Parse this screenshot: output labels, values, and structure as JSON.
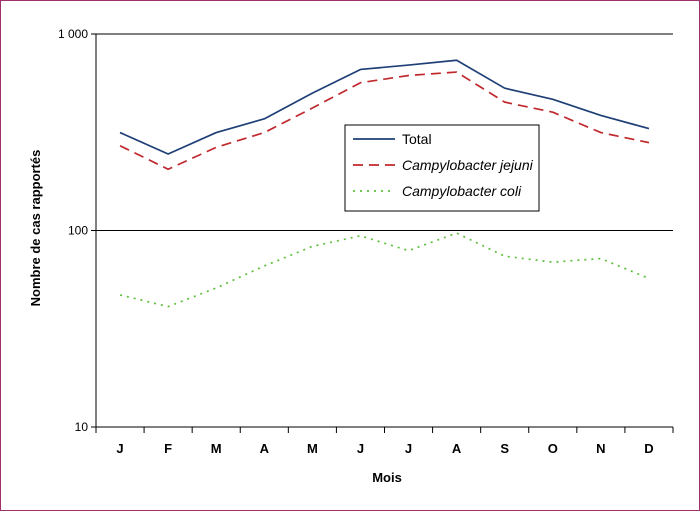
{
  "chart_data": {
    "type": "line",
    "title": "",
    "xlabel": "Mois",
    "ylabel": "Nombre de cas rapportés",
    "yscale": "log",
    "ylim": [
      10,
      1000
    ],
    "y_ticks": [
      {
        "value": 10,
        "label": "10"
      },
      {
        "value": 100,
        "label": "100"
      },
      {
        "value": 1000,
        "label": "1 000"
      }
    ],
    "grid": "horizontal major lines at 100 and 1 000",
    "legend_position": "center-right",
    "categories": [
      "J",
      "F",
      "M",
      "A",
      "M",
      "J",
      "J",
      "A",
      "S",
      "O",
      "N",
      "D"
    ],
    "series": [
      {
        "name": "Total",
        "italic": false,
        "color": "#1f3f77",
        "style": "solid",
        "values": [
          315,
          245,
          315,
          370,
          500,
          660,
          695,
          735,
          530,
          465,
          385,
          330
        ]
      },
      {
        "name": "Campylobacter jejuni",
        "italic": true,
        "color": "#c0282d",
        "style": "dashed",
        "values": [
          270,
          205,
          265,
          315,
          420,
          565,
          615,
          640,
          450,
          400,
          315,
          280
        ]
      },
      {
        "name": "Campylobacter coli",
        "italic": true,
        "color": "#5cbf3b",
        "style": "dotted",
        "values": [
          47,
          41,
          51,
          66,
          83,
          94,
          79,
          97,
          74,
          69,
          72,
          57
        ]
      }
    ]
  }
}
